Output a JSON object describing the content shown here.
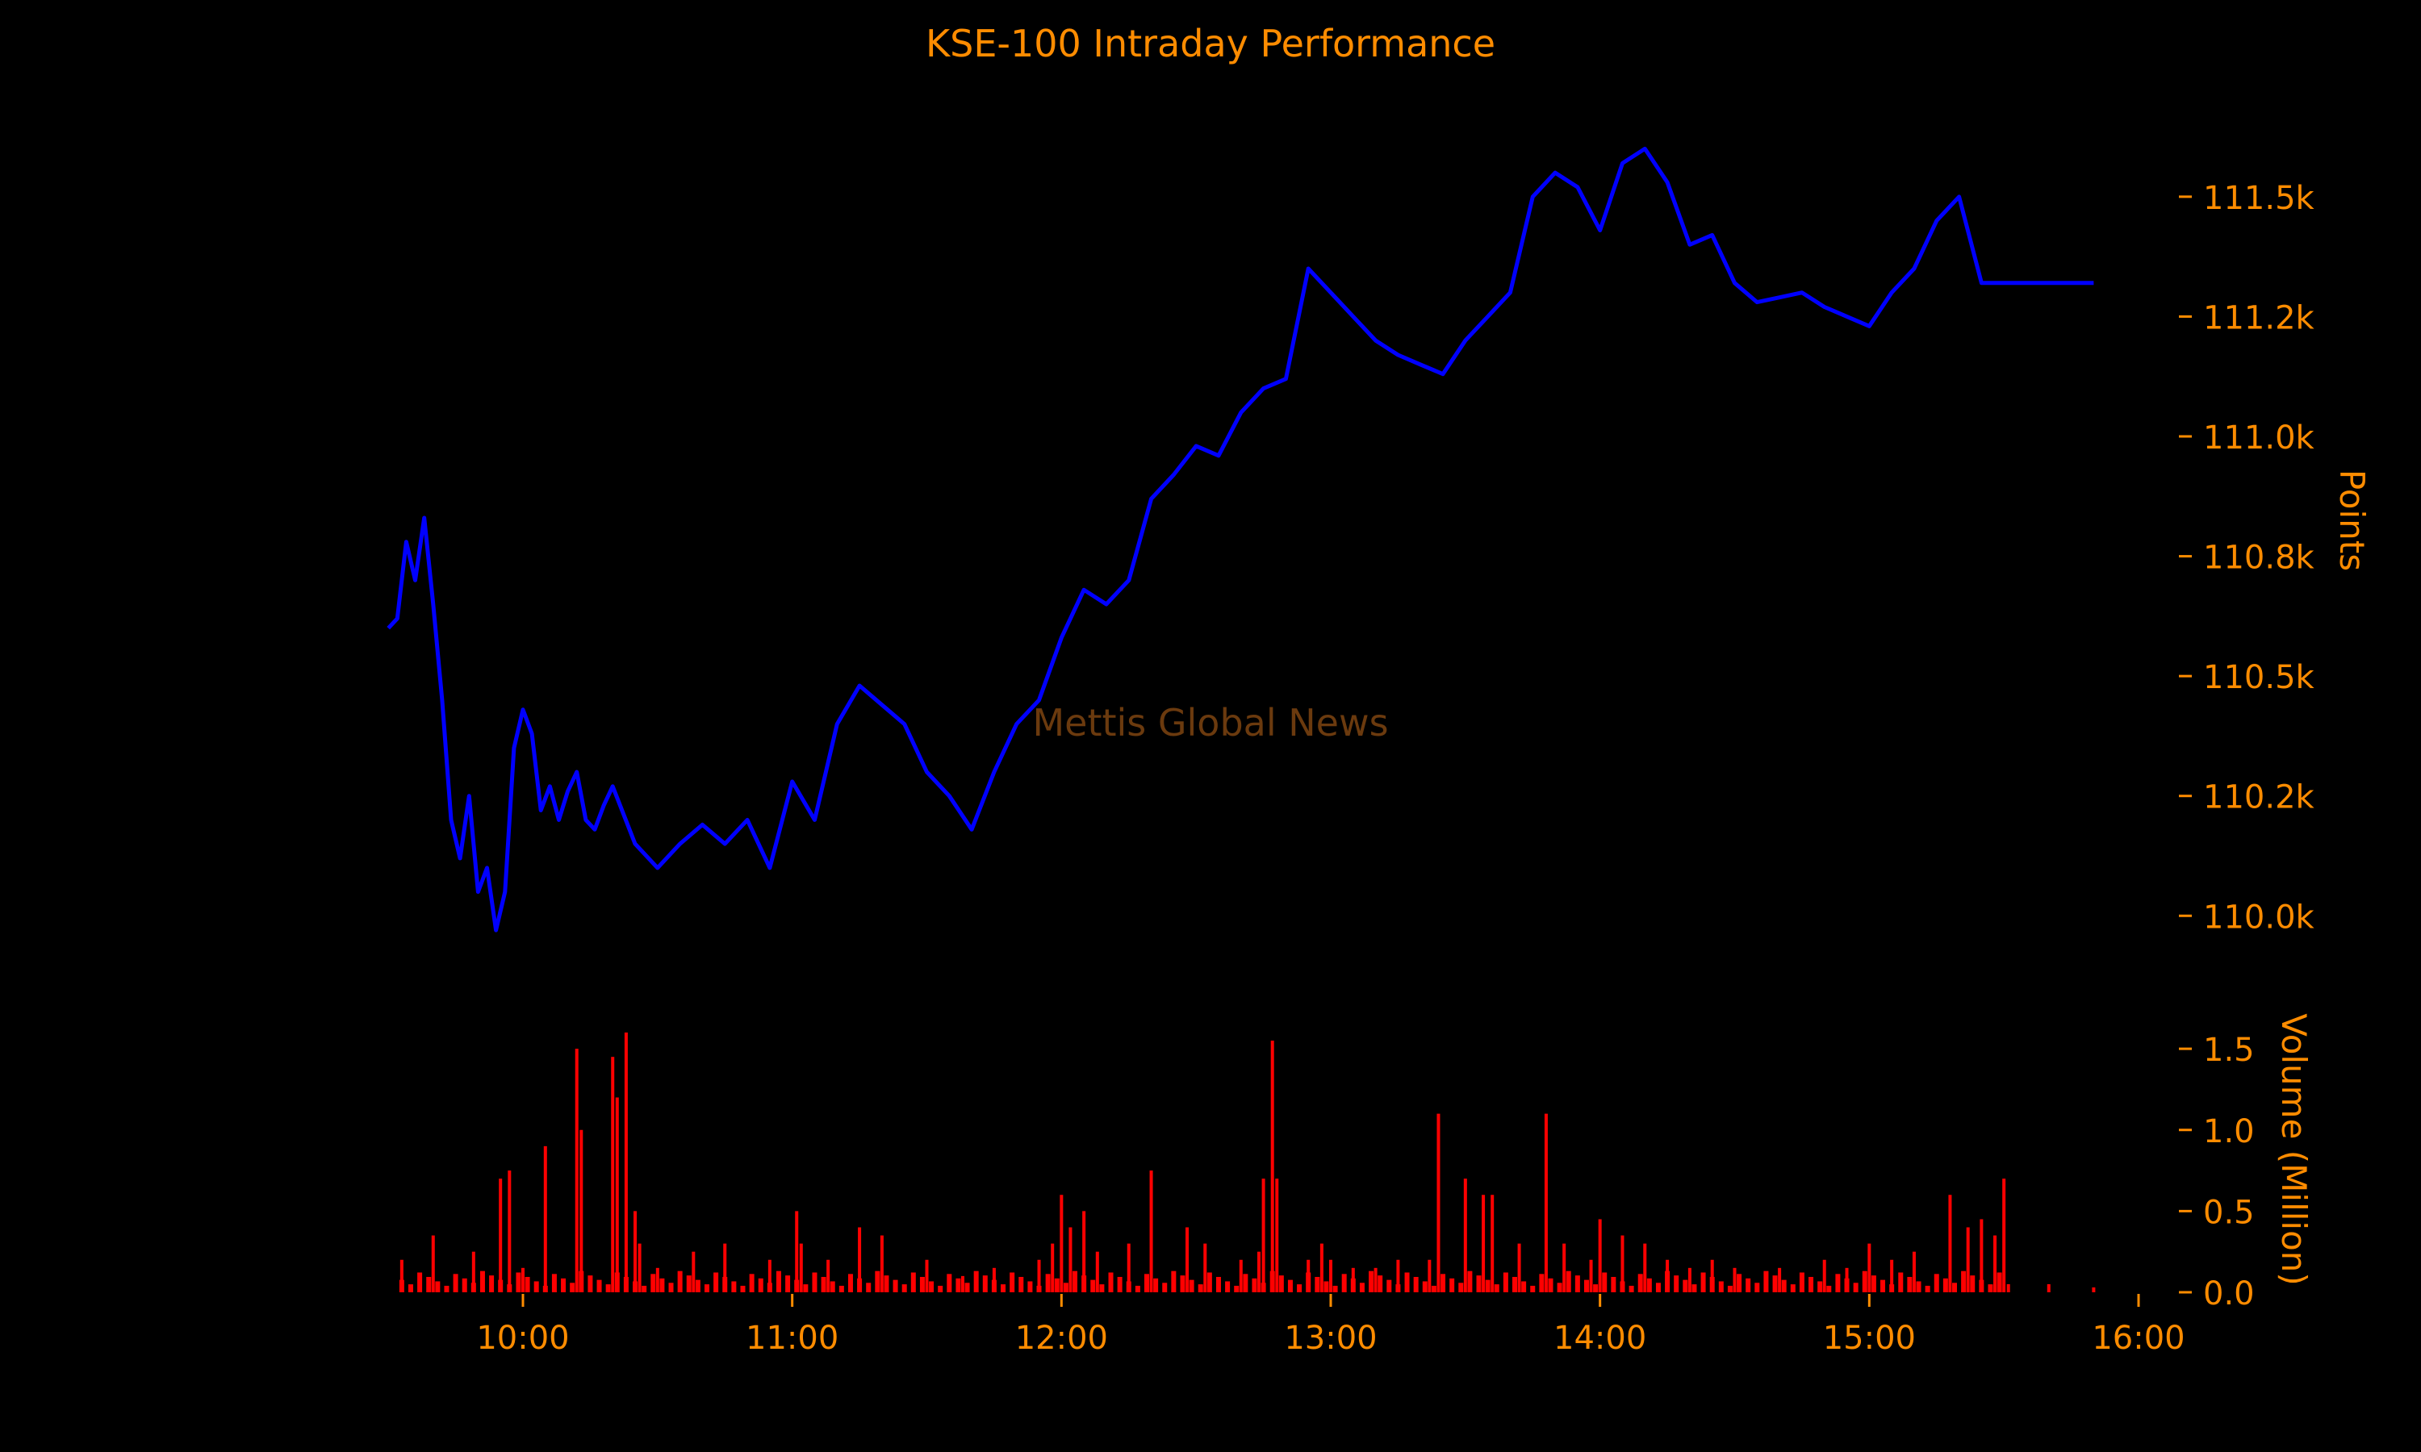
{
  "colors": {
    "background": "#000000",
    "accent": "#FF8C00",
    "price_line": "#0000FF",
    "volume_bars": "#FF0000",
    "watermark": "#6B3A0E"
  },
  "title": "KSE-100 Intraday Performance",
  "watermark": "Mettis Global News",
  "chart_data": [
    {
      "type": "line",
      "title": "KSE-100 Intraday Performance",
      "ylabel": "Points",
      "xlabel": "",
      "ylim": [
        109950,
        111700
      ],
      "yticks": [
        110000,
        110250,
        110500,
        110750,
        111000,
        111250,
        111500
      ],
      "ytick_labels": [
        "110.0k",
        "110.2k",
        "110.5k",
        "110.8k",
        "111.0k",
        "111.2k",
        "111.5k"
      ],
      "axis_side": "right",
      "grid": false,
      "series": [
        {
          "x": [
            "09:30",
            "09:32",
            "09:34",
            "09:36",
            "09:38",
            "09:40",
            "09:42",
            "09:44",
            "09:46",
            "09:48",
            "09:50",
            "09:52",
            "09:54",
            "09:56",
            "09:58",
            "10:00",
            "10:02",
            "10:04",
            "10:06",
            "10:08",
            "10:10",
            "10:12",
            "10:14",
            "10:16",
            "10:18",
            "10:20",
            "10:25",
            "10:30",
            "10:35",
            "10:40",
            "10:45",
            "10:50",
            "10:55",
            "11:00",
            "11:05",
            "11:10",
            "11:15",
            "11:20",
            "11:25",
            "11:30",
            "11:35",
            "11:40",
            "11:45",
            "11:50",
            "11:55",
            "12:00",
            "12:05",
            "12:10",
            "12:15",
            "12:20",
            "12:25",
            "12:30",
            "12:35",
            "12:40",
            "12:45",
            "12:50",
            "12:55",
            "13:00",
            "13:05",
            "13:10",
            "13:15",
            "13:20",
            "13:25",
            "13:30",
            "13:35",
            "13:40",
            "13:45",
            "13:50",
            "13:55",
            "14:00",
            "14:05",
            "14:10",
            "14:15",
            "14:20",
            "14:25",
            "14:30",
            "14:35",
            "14:40",
            "14:45",
            "14:50",
            "14:55",
            "15:00",
            "15:05",
            "15:10",
            "15:15",
            "15:20",
            "15:25",
            "15:30",
            "15:50"
          ],
          "y": [
            110600,
            110620,
            110780,
            110700,
            110830,
            110650,
            110450,
            110200,
            110120,
            110250,
            110050,
            110100,
            109970,
            110050,
            110350,
            110430,
            110380,
            110220,
            110270,
            110200,
            110260,
            110300,
            110200,
            110180,
            110230,
            110270,
            110150,
            110100,
            110150,
            110190,
            110150,
            110200,
            110100,
            110280,
            110200,
            110400,
            110480,
            110440,
            110400,
            110300,
            110250,
            110180,
            110300,
            110400,
            110450,
            110580,
            110680,
            110650,
            110700,
            110870,
            110920,
            110980,
            110960,
            111050,
            111100,
            111120,
            111350,
            111300,
            111250,
            111200,
            111170,
            111150,
            111130,
            111200,
            111250,
            111300,
            111500,
            111550,
            111520,
            111430,
            111570,
            111600,
            111530,
            111400,
            111420,
            111320,
            111280,
            111290,
            111300,
            111270,
            111250,
            111230,
            111300,
            111350,
            111450,
            111500,
            111320,
            111320,
            111320
          ]
        }
      ]
    },
    {
      "type": "bar",
      "ylabel": "Volume (Million)",
      "ylim": [
        0,
        1.6
      ],
      "yticks": [
        0.0,
        0.5,
        1.0,
        1.5
      ],
      "ytick_labels": [
        "0.0",
        "0.5",
        "1.0",
        "1.5"
      ],
      "xticks": [
        "10:00",
        "11:00",
        "12:00",
        "13:00",
        "14:00",
        "15:00",
        "16:00"
      ],
      "axis_side": "right",
      "grid": false,
      "series": [
        {
          "x": [
            "09:33",
            "09:40",
            "09:49",
            "09:55",
            "09:57",
            "10:00",
            "10:05",
            "10:12",
            "10:13",
            "10:20",
            "10:21",
            "10:23",
            "10:25",
            "10:26",
            "10:30",
            "10:38",
            "10:45",
            "10:55",
            "11:01",
            "11:02",
            "11:08",
            "11:15",
            "11:20",
            "11:30",
            "11:38",
            "11:45",
            "11:55",
            "11:58",
            "12:00",
            "12:02",
            "12:05",
            "12:08",
            "12:15",
            "12:20",
            "12:28",
            "12:32",
            "12:40",
            "12:44",
            "12:45",
            "12:47",
            "12:48",
            "12:55",
            "12:58",
            "13:00",
            "13:05",
            "13:10",
            "13:15",
            "13:22",
            "13:24",
            "13:30",
            "13:34",
            "13:36",
            "13:42",
            "13:48",
            "13:52",
            "13:58",
            "14:00",
            "14:05",
            "14:10",
            "14:15",
            "14:20",
            "14:25",
            "14:30",
            "14:40",
            "14:50",
            "14:55",
            "15:00",
            "15:05",
            "15:10",
            "15:18",
            "15:22",
            "15:25",
            "15:28",
            "15:30",
            "15:31",
            "15:40",
            "15:50"
          ],
          "values": [
            0.2,
            0.35,
            0.25,
            0.7,
            0.75,
            0.15,
            0.9,
            1.5,
            1.0,
            1.45,
            1.2,
            1.6,
            0.5,
            0.3,
            0.15,
            0.25,
            0.3,
            0.2,
            0.5,
            0.3,
            0.2,
            0.4,
            0.35,
            0.2,
            0.1,
            0.15,
            0.2,
            0.3,
            0.6,
            0.4,
            0.5,
            0.25,
            0.3,
            0.75,
            0.4,
            0.3,
            0.2,
            0.25,
            0.7,
            1.55,
            0.7,
            0.2,
            0.3,
            0.2,
            0.15,
            0.15,
            0.2,
            0.2,
            1.1,
            0.7,
            0.6,
            0.6,
            0.3,
            1.1,
            0.3,
            0.2,
            0.45,
            0.35,
            0.3,
            0.2,
            0.15,
            0.2,
            0.15,
            0.15,
            0.2,
            0.15,
            0.3,
            0.2,
            0.25,
            0.6,
            0.4,
            0.45,
            0.35,
            0.7,
            0.05,
            0.05,
            0.03
          ]
        }
      ]
    }
  ]
}
